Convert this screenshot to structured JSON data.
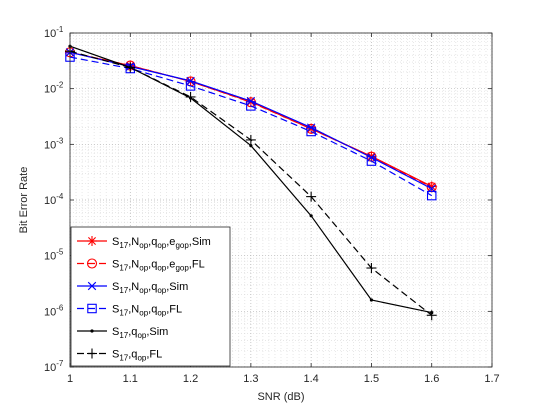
{
  "chart_data": {
    "type": "line",
    "xlabel": "SNR (dB)",
    "ylabel": "Bit Error Rate",
    "xlim": [
      1,
      1.7
    ],
    "ylim": [
      1e-07,
      0.1
    ],
    "yscale": "log",
    "grid": true,
    "minor_grid": true,
    "legend_position": "bottom-left",
    "x_ticks": [
      "1",
      "1.1",
      "1.2",
      "1.3",
      "1.4",
      "1.5",
      "1.6",
      "1.7"
    ],
    "y_ticks": [
      {
        "base": "10",
        "exp": "-7"
      },
      {
        "base": "10",
        "exp": "-6"
      },
      {
        "base": "10",
        "exp": "-5"
      },
      {
        "base": "10",
        "exp": "-4"
      },
      {
        "base": "10",
        "exp": "-3"
      },
      {
        "base": "10",
        "exp": "-2"
      },
      {
        "base": "10",
        "exp": "-1"
      }
    ],
    "series": [
      {
        "legend": [
          [
            "S",
            "17",
            ""
          ],
          [
            ",N",
            "op",
            ""
          ],
          [
            ",q",
            "op",
            ""
          ],
          [
            ",e",
            "gop",
            ""
          ],
          [
            ",Sim",
            "",
            ""
          ]
        ],
        "color": "#ff0000",
        "dash": "solid",
        "marker": "asterisk",
        "x": [
          1,
          1.1,
          1.2,
          1.3,
          1.4,
          1.5,
          1.6
        ],
        "y": [
          0.045,
          0.026,
          0.0135,
          0.0058,
          0.0019,
          0.00061,
          0.000175
        ]
      },
      {
        "legend": [
          [
            "S",
            "17",
            ""
          ],
          [
            ",N",
            "op",
            ""
          ],
          [
            ",q",
            "op",
            ""
          ],
          [
            ",e",
            "gop",
            ""
          ],
          [
            ",FL",
            "",
            ""
          ]
        ],
        "color": "#ff0000",
        "dash": "dashed",
        "marker": "circle",
        "x": [
          1,
          1.1,
          1.2,
          1.3,
          1.4,
          1.5,
          1.6
        ],
        "y": [
          0.045,
          0.026,
          0.0135,
          0.0057,
          0.0019,
          0.0006,
          0.00017
        ]
      },
      {
        "legend": [
          [
            "S",
            "17",
            ""
          ],
          [
            ",N",
            "op",
            ""
          ],
          [
            ",q",
            "op",
            ""
          ],
          [
            ",Sim",
            "",
            ""
          ]
        ],
        "color": "#0000ff",
        "dash": "solid",
        "marker": "x",
        "x": [
          1,
          1.1,
          1.2,
          1.3,
          1.4,
          1.5,
          1.6
        ],
        "y": [
          0.045,
          0.025,
          0.0138,
          0.006,
          0.002,
          0.00058,
          0.00016
        ]
      },
      {
        "legend": [
          [
            "S",
            "17",
            ""
          ],
          [
            ",N",
            "op",
            ""
          ],
          [
            ",q",
            "op",
            ""
          ],
          [
            ",FL",
            "",
            ""
          ]
        ],
        "color": "#0000ff",
        "dash": "dashed",
        "marker": "square",
        "x": [
          1,
          1.1,
          1.2,
          1.3,
          1.4,
          1.5,
          1.6
        ],
        "y": [
          0.037,
          0.023,
          0.0112,
          0.0049,
          0.0017,
          0.0005,
          0.00012
        ]
      },
      {
        "legend": [
          [
            "S",
            "17",
            ""
          ],
          [
            ",q",
            "op",
            ""
          ],
          [
            ",Sim",
            "",
            ""
          ]
        ],
        "color": "#000000",
        "dash": "solid",
        "marker": "dot",
        "x": [
          1,
          1.1,
          1.2,
          1.3,
          1.4,
          1.5,
          1.6
        ],
        "y": [
          0.058,
          0.024,
          0.0068,
          0.00095,
          5.2e-05,
          1.6e-06,
          9.5e-07
        ]
      },
      {
        "legend": [
          [
            "S",
            "17",
            ""
          ],
          [
            ",q",
            "op",
            ""
          ],
          [
            ",FL",
            "",
            ""
          ]
        ],
        "color": "#000000",
        "dash": "dashed",
        "marker": "plus",
        "x": [
          1,
          1.1,
          1.2,
          1.3,
          1.4,
          1.5,
          1.6
        ],
        "y": [
          0.047,
          0.024,
          0.0071,
          0.0012,
          0.000115,
          6e-06,
          8.5e-07
        ]
      }
    ]
  }
}
